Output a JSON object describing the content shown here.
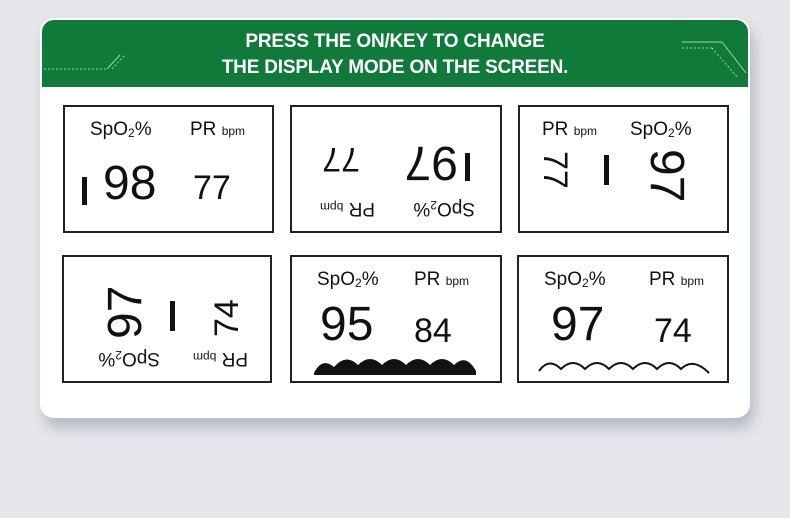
{
  "header": {
    "line1": "PRESS THE ON/KEY TO CHANGE",
    "line2": "THE DISPLAY MODE ON THE SCREEN.",
    "color": "#0f7a3a"
  },
  "labels": {
    "spo2": "SpO",
    "spo2_sub": "2",
    "percent": "%",
    "pr": "PR",
    "bpm": "bpm"
  },
  "panels": [
    {
      "mode": "normal",
      "spo2": "98",
      "pr": "77"
    },
    {
      "mode": "rotated-180",
      "spo2": "97",
      "pr": "77"
    },
    {
      "mode": "rotated-90",
      "spo2": "97",
      "pr": "77"
    },
    {
      "mode": "rotated-270",
      "spo2": "97",
      "pr": "74"
    },
    {
      "mode": "filled-waveform",
      "spo2": "95",
      "pr": "84"
    },
    {
      "mode": "line-waveform",
      "spo2": "97",
      "pr": "74"
    }
  ]
}
